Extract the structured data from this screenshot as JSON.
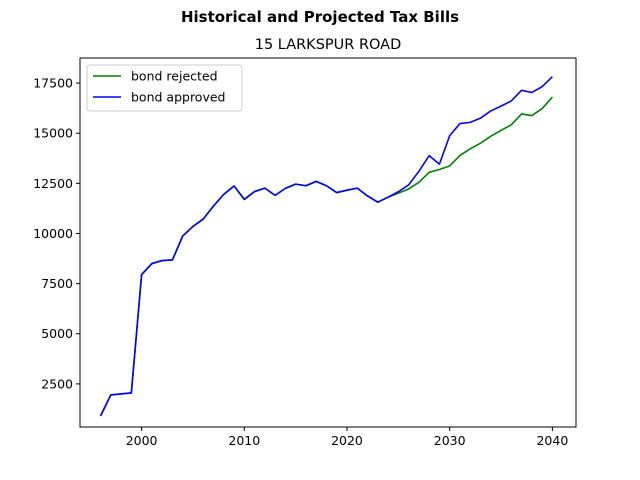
{
  "chart_data": {
    "type": "line",
    "suptitle": "Historical and Projected Tax Bills",
    "title": "15 LARKSPUR ROAD",
    "xlabel": "",
    "ylabel": "",
    "xlim": [
      1994,
      2042.3
    ],
    "ylim": [
      350,
      18750
    ],
    "xticks": [
      2000,
      2010,
      2020,
      2030,
      2040
    ],
    "yticks": [
      2500,
      5000,
      7500,
      10000,
      12500,
      15000,
      17500
    ],
    "grid": false,
    "legend_position": "top-left",
    "series": [
      {
        "name": "bond rejected",
        "color": "#008000",
        "points": [
          [
            1996,
            900
          ],
          [
            1997,
            1950
          ],
          [
            1998,
            2000
          ],
          [
            1999,
            2050
          ],
          [
            2000,
            7950
          ],
          [
            2001,
            8500
          ],
          [
            2002,
            8650
          ],
          [
            2003,
            8680
          ],
          [
            2004,
            9870
          ],
          [
            2005,
            10350
          ],
          [
            2006,
            10720
          ],
          [
            2007,
            11370
          ],
          [
            2008,
            11950
          ],
          [
            2009,
            12370
          ],
          [
            2010,
            11700
          ],
          [
            2011,
            12090
          ],
          [
            2012,
            12260
          ],
          [
            2013,
            11900
          ],
          [
            2014,
            12250
          ],
          [
            2015,
            12460
          ],
          [
            2016,
            12380
          ],
          [
            2017,
            12600
          ],
          [
            2018,
            12380
          ],
          [
            2019,
            12040
          ],
          [
            2020,
            12160
          ],
          [
            2021,
            12260
          ],
          [
            2022,
            11870
          ],
          [
            2023,
            11560
          ],
          [
            2024,
            11810
          ],
          [
            2025,
            12010
          ],
          [
            2026,
            12220
          ],
          [
            2027,
            12550
          ],
          [
            2028,
            13050
          ],
          [
            2029,
            13190
          ],
          [
            2030,
            13370
          ],
          [
            2031,
            13890
          ],
          [
            2032,
            14220
          ],
          [
            2033,
            14500
          ],
          [
            2034,
            14850
          ],
          [
            2035,
            15140
          ],
          [
            2036,
            15420
          ],
          [
            2037,
            15960
          ],
          [
            2038,
            15880
          ],
          [
            2039,
            16230
          ],
          [
            2040,
            16800
          ]
        ]
      },
      {
        "name": "bond approved",
        "color": "#0000ff",
        "points": [
          [
            1996,
            900
          ],
          [
            1997,
            1950
          ],
          [
            1998,
            2000
          ],
          [
            1999,
            2050
          ],
          [
            2000,
            7950
          ],
          [
            2001,
            8500
          ],
          [
            2002,
            8650
          ],
          [
            2003,
            8680
          ],
          [
            2004,
            9870
          ],
          [
            2005,
            10350
          ],
          [
            2006,
            10720
          ],
          [
            2007,
            11370
          ],
          [
            2008,
            11950
          ],
          [
            2009,
            12370
          ],
          [
            2010,
            11700
          ],
          [
            2011,
            12090
          ],
          [
            2012,
            12260
          ],
          [
            2013,
            11900
          ],
          [
            2014,
            12250
          ],
          [
            2015,
            12460
          ],
          [
            2016,
            12380
          ],
          [
            2017,
            12600
          ],
          [
            2018,
            12380
          ],
          [
            2019,
            12040
          ],
          [
            2020,
            12160
          ],
          [
            2021,
            12260
          ],
          [
            2022,
            11870
          ],
          [
            2023,
            11560
          ],
          [
            2024,
            11810
          ],
          [
            2025,
            12080
          ],
          [
            2026,
            12420
          ],
          [
            2027,
            13100
          ],
          [
            2028,
            13880
          ],
          [
            2029,
            13460
          ],
          [
            2030,
            14880
          ],
          [
            2031,
            15480
          ],
          [
            2032,
            15540
          ],
          [
            2033,
            15750
          ],
          [
            2034,
            16110
          ],
          [
            2035,
            16350
          ],
          [
            2036,
            16610
          ],
          [
            2037,
            17140
          ],
          [
            2038,
            17030
          ],
          [
            2039,
            17320
          ],
          [
            2040,
            17820
          ]
        ]
      }
    ]
  }
}
